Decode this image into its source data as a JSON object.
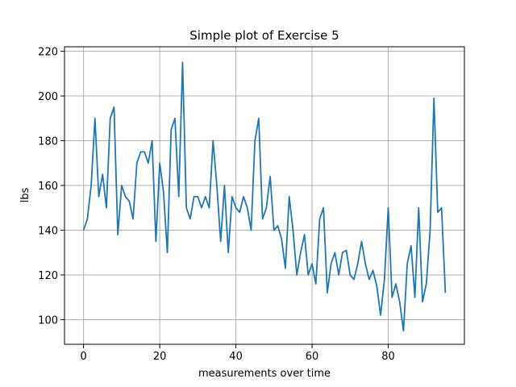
{
  "chart_data": {
    "type": "line",
    "title": "Simple plot of Exercise 5",
    "xlabel": "measurements over time",
    "ylabel": "lbs",
    "xlim": [
      -5,
      100
    ],
    "ylim": [
      89,
      222
    ],
    "xticks": [
      0,
      20,
      40,
      60,
      80
    ],
    "yticks": [
      100,
      120,
      140,
      160,
      180,
      200,
      220
    ],
    "grid": true,
    "line_color": "#1f77b4",
    "series": [
      {
        "values": [
          140,
          145,
          160,
          190,
          155,
          165,
          150,
          190,
          195,
          138,
          160,
          155,
          153,
          145,
          170,
          175,
          175,
          170,
          180,
          135,
          170,
          157,
          130,
          185,
          190,
          155,
          215,
          150,
          145,
          155,
          155,
          150,
          155,
          150,
          180,
          160,
          135,
          160,
          130,
          155,
          150,
          148,
          155,
          150,
          140,
          180,
          190,
          145,
          150,
          164,
          140,
          142,
          136,
          123,
          155,
          140,
          120,
          130,
          138,
          120,
          125,
          116,
          145,
          150,
          112,
          125,
          130,
          120,
          130,
          131,
          120,
          118,
          125,
          135,
          125,
          118,
          122,
          115,
          102,
          118,
          150,
          110,
          116,
          108,
          95,
          125,
          133,
          110,
          150,
          108,
          116,
          140,
          199,
          148,
          150,
          112
        ]
      }
    ]
  }
}
